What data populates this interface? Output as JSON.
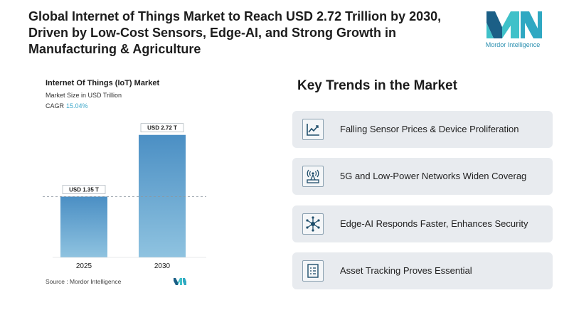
{
  "headline": "Global Internet of Things Market to Reach USD 2.72 Trillion by 2030, Driven by Low-Cost Sensors, Edge-AI, and Strong Growth in Manufacturing & Agriculture",
  "brand": {
    "name": "Mordor Intelligence",
    "color_dark": "#1b5f86",
    "color_light": "#3fc1c9"
  },
  "chart_panel": {
    "title": "Internet Of Things (IoT) Market",
    "subtitle": "Market Size in USD Trillion",
    "cagr_label": "CAGR",
    "cagr_value": "15.04%",
    "source_label": "Source :",
    "source_name": "Mordor Intelligence"
  },
  "chart_data": {
    "type": "bar",
    "categories": [
      "2025",
      "2030"
    ],
    "values": [
      1.35,
      2.72
    ],
    "data_labels": [
      "USD 1.35 T",
      "USD 2.72 T"
    ],
    "ylim": [
      0,
      3.0
    ],
    "reference_line": 1.35,
    "grid": false,
    "colors": [
      "#4b8fc4",
      "#8fc3e0"
    ]
  },
  "trends": {
    "title": "Key Trends in the Market",
    "items": [
      {
        "label": "Falling Sensor Prices & Device Proliferation",
        "icon": "trend-line-chart-icon"
      },
      {
        "label": "5G and Low-Power Networks Widen Coverag",
        "icon": "antenna-tower-icon"
      },
      {
        "label": "Edge-AI Responds Faster, Enhances Security",
        "icon": "network-hub-icon"
      },
      {
        "label": "Asset Tracking Proves Essential",
        "icon": "checklist-icon"
      }
    ]
  }
}
